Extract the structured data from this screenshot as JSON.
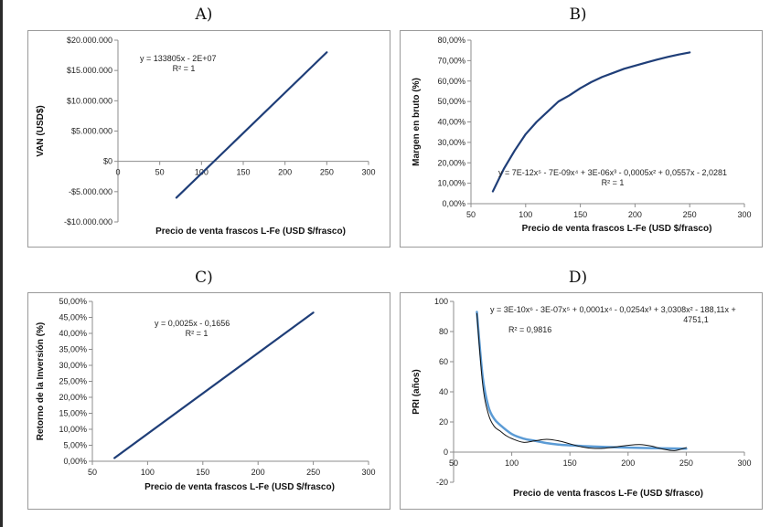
{
  "panel_titles": [
    "A)",
    "B)",
    "C)",
    "D)"
  ],
  "chart_data": [
    {
      "id": "A",
      "type": "line",
      "xlabel": "Precio de venta frascos L-Fe (USD $/frasco)",
      "ylabel": "VAN (USD$)",
      "xlim": [
        0,
        300
      ],
      "ylim": [
        -10000000,
        20000000
      ],
      "x_ticks": [
        0,
        50,
        100,
        150,
        200,
        250,
        300
      ],
      "y_ticks": [
        -10000000,
        -5000000,
        0,
        5000000,
        10000000,
        15000000,
        20000000
      ],
      "x_tick_labels": [
        "0",
        "50",
        "100",
        "150",
        "200",
        "250",
        "300"
      ],
      "y_tick_labels": [
        "-$10.000.000",
        "-$5.000.000",
        "$0",
        "$5.000.000",
        "$10.000.000",
        "$15.000.000",
        "$20.000.000"
      ],
      "x_axis_at_zero": true,
      "grid": false,
      "series": [
        {
          "color": "#1f3e78",
          "x": [
            70,
            250
          ],
          "y": [
            -6000000,
            18000000
          ]
        }
      ],
      "annotation": [
        "y = 133805x - 2E+07",
        "R² = 1"
      ]
    },
    {
      "id": "B",
      "type": "line",
      "xlabel": "Precio de venta frascos L-Fe (USD $/frasco)",
      "ylabel": "Margen en bruto (%)",
      "xlim": [
        50,
        300
      ],
      "ylim": [
        0,
        80
      ],
      "x_ticks": [
        50,
        100,
        150,
        200,
        250,
        300
      ],
      "y_ticks": [
        0,
        10,
        20,
        30,
        40,
        50,
        60,
        70,
        80
      ],
      "x_tick_labels": [
        "50",
        "100",
        "150",
        "200",
        "250",
        "300"
      ],
      "y_tick_labels": [
        "0,00%",
        "10,00%",
        "20,00%",
        "30,00%",
        "40,00%",
        "50,00%",
        "60,00%",
        "70,00%",
        "80,00%"
      ],
      "grid": false,
      "series": [
        {
          "color": "#1f3e78",
          "x": [
            70,
            80,
            90,
            100,
            110,
            120,
            130,
            140,
            150,
            160,
            170,
            180,
            190,
            200,
            210,
            220,
            230,
            240,
            250
          ],
          "y": [
            6,
            17,
            26,
            34,
            40,
            45,
            50,
            53,
            56.5,
            59.5,
            62,
            64,
            66,
            67.5,
            69,
            70.5,
            71.8,
            73,
            74
          ]
        }
      ],
      "annotation": [
        "y = 7E-12x⁵ - 7E-09x⁴ + 3E-06x³ - 0,0005x² + 0,0557x - 2,0281",
        "R² = 1"
      ]
    },
    {
      "id": "C",
      "type": "line",
      "xlabel": "Precio de venta frascos L-Fe (USD $/frasco)",
      "ylabel": "Retorno de la Inversión (%)",
      "xlim": [
        50,
        300
      ],
      "ylim": [
        0,
        50
      ],
      "x_ticks": [
        50,
        100,
        150,
        200,
        250,
        300
      ],
      "y_ticks": [
        0,
        5,
        10,
        15,
        20,
        25,
        30,
        35,
        40,
        45,
        50
      ],
      "x_tick_labels": [
        "50",
        "100",
        "150",
        "200",
        "250",
        "300"
      ],
      "y_tick_labels": [
        "0,00%",
        "5,00%",
        "10,00%",
        "15,00%",
        "20,00%",
        "25,00%",
        "30,00%",
        "35,00%",
        "40,00%",
        "45,00%",
        "50,00%"
      ],
      "grid": false,
      "series": [
        {
          "color": "#1f3e78",
          "x": [
            70,
            250
          ],
          "y": [
            1,
            46.5
          ]
        }
      ],
      "annotation": [
        "y = 0,0025x - 0,1656",
        "R² = 1"
      ]
    },
    {
      "id": "D",
      "type": "line",
      "xlabel": "Precio de venta frascos L-Fe (USD $/frasco)",
      "ylabel": "PRI (años)",
      "xlim": [
        50,
        300
      ],
      "ylim": [
        -20,
        100
      ],
      "x_ticks": [
        50,
        100,
        150,
        200,
        250,
        300
      ],
      "y_ticks": [
        -20,
        0,
        20,
        40,
        60,
        80,
        100
      ],
      "x_tick_labels": [
        "50",
        "100",
        "150",
        "200",
        "250",
        "300"
      ],
      "y_tick_labels": [
        "-20",
        "0",
        "20",
        "40",
        "60",
        "80",
        "100"
      ],
      "x_axis_at_zero": true,
      "grid": false,
      "series": [
        {
          "color": "#5b9bd5",
          "width": 2.5,
          "x": [
            70,
            75,
            80,
            85,
            90,
            100,
            110,
            120,
            130,
            140,
            150,
            170,
            190,
            210,
            230,
            250
          ],
          "y": [
            93,
            50,
            30,
            22,
            18,
            12,
            9,
            7.5,
            6,
            5,
            4.5,
            3.7,
            3.2,
            2.8,
            2.5,
            2.3
          ]
        },
        {
          "color": "#111111",
          "width": 1,
          "x": [
            70,
            75,
            80,
            85,
            90,
            95,
            100,
            110,
            120,
            130,
            140,
            150,
            160,
            170,
            180,
            190,
            200,
            210,
            220,
            230,
            240,
            250
          ],
          "y": [
            92,
            45,
            25,
            17,
            14,
            11,
            9,
            6.5,
            7.5,
            8.5,
            7.5,
            5.5,
            3.5,
            2.5,
            2.6,
            3.5,
            4.5,
            5,
            4,
            2,
            1,
            3
          ]
        }
      ],
      "annotation": [
        "y = 3E-10x⁶ - 3E-07x⁵ + 0,0001x⁴ - 0,0254x³ + 3,0308x² - 188,11x +",
        "4751,1",
        "R² = 0,9816"
      ]
    }
  ]
}
